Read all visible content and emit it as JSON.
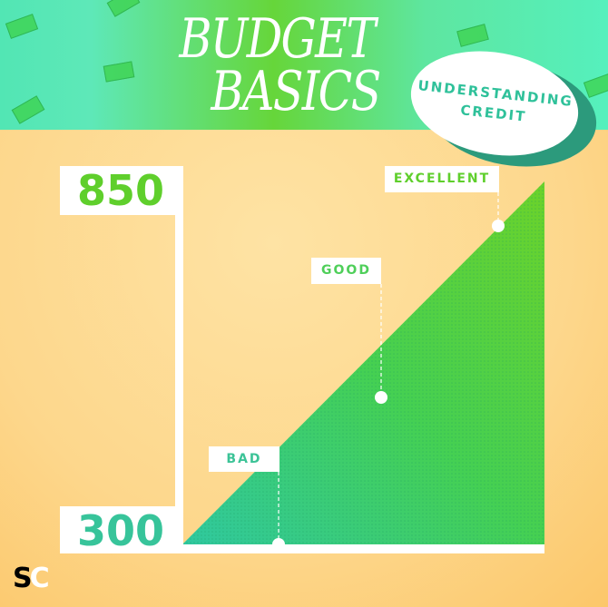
{
  "header": {
    "title_line1": "BUDGET",
    "title_line2": "BASICS",
    "badge_line1": "UNDERSTANDING",
    "badge_line2": "CREDIT"
  },
  "scale": {
    "max_label": "850",
    "min_label": "300",
    "max_color": "#5fcf2c",
    "min_color": "#37c49a"
  },
  "markers": [
    {
      "label": "EXCELLENT"
    },
    {
      "label": "GOOD"
    },
    {
      "label": "BAD"
    }
  ],
  "logo": {
    "s": "S",
    "c": "C"
  }
}
